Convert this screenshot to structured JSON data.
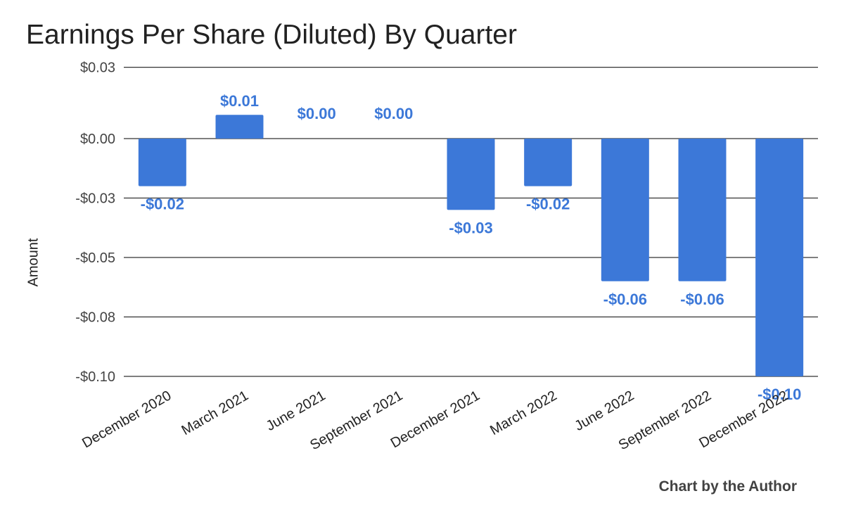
{
  "chart_data": {
    "type": "bar",
    "title": "Earnings Per Share (Diluted) By Quarter",
    "ylabel": "Amount",
    "xlabel": "",
    "categories": [
      "December 2020",
      "March 2021",
      "June 2021",
      "September 2021",
      "December 2021",
      "March 2022",
      "June 2022",
      "September 2022",
      "December 2022"
    ],
    "values": [
      -0.02,
      0.01,
      0.0,
      0.0,
      -0.03,
      -0.02,
      -0.06,
      -0.06,
      -0.1
    ],
    "data_labels": [
      "-$0.02",
      "$0.01",
      "$0.00",
      "$0.00",
      "-$0.03",
      "-$0.02",
      "-$0.06",
      "-$0.06",
      "-$0.10"
    ],
    "y_ticks": [
      0.03,
      0.0,
      -0.025,
      -0.05,
      -0.075,
      -0.1
    ],
    "y_tick_labels": [
      "$0.03",
      "$0.00",
      "-$0.03",
      "-$0.05",
      "-$0.08",
      "-$0.10"
    ],
    "ylim": [
      -0.1,
      0.025
    ],
    "grid": true,
    "legend": "none",
    "bar_color": "#3c78d8",
    "label_color": "#3c78d8"
  },
  "credit": "Chart by the Author"
}
